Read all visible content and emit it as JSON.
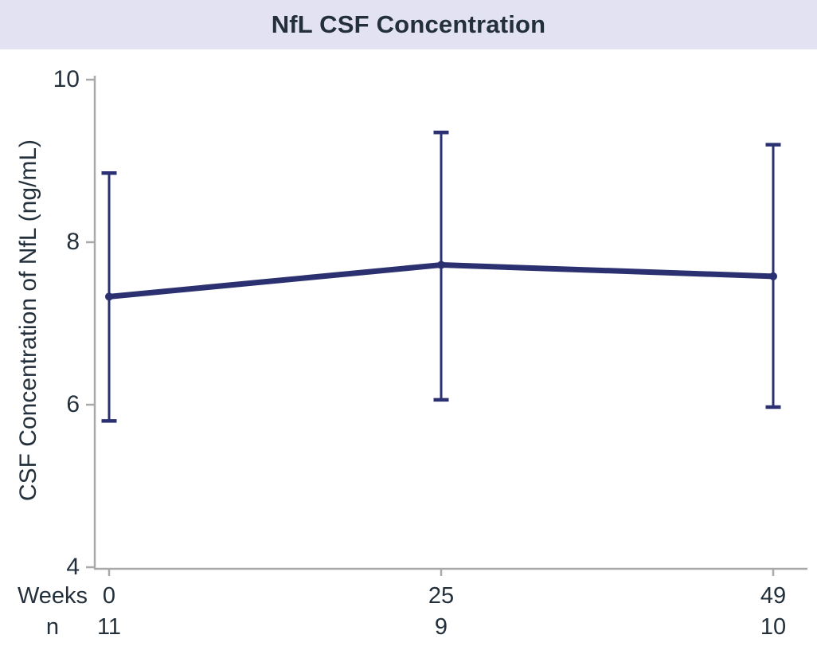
{
  "colors": {
    "banner_bg": "#e2e2f3",
    "text": "#232f3a",
    "series": "#2b3070",
    "axis": "#a9a9a9"
  },
  "chart_data": {
    "type": "line",
    "title": "NfL CSF Concentration",
    "ylabel": "CSF Concentration of NfL (ng/mL)",
    "x_row_label": "Weeks",
    "n_row_label": "n",
    "x": [
      0,
      25,
      49
    ],
    "n": [
      11,
      9,
      10
    ],
    "yticks": [
      10,
      8,
      6,
      4
    ],
    "ylim": [
      4,
      10
    ],
    "grid": false,
    "legend": false,
    "series": [
      {
        "means": [
          7.33,
          7.72,
          7.58
        ],
        "ci_low": [
          5.8,
          6.06,
          5.97
        ],
        "ci_high": [
          8.85,
          9.35,
          9.2
        ]
      }
    ]
  }
}
